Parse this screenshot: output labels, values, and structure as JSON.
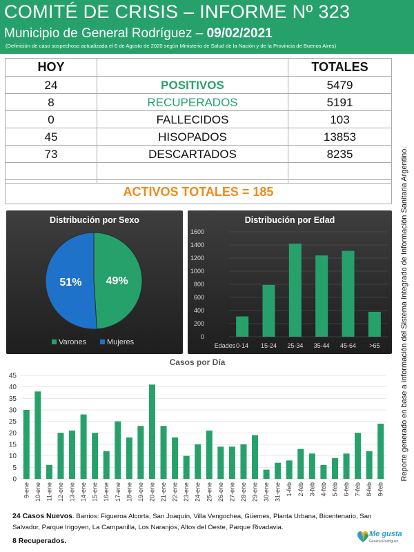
{
  "header": {
    "title": "COMITÉ DE CRISIS – INFORME Nº 323",
    "subtitle_prefix": "Municipio de General Rodríguez – ",
    "date": "09/02/2021",
    "definition": "(Definición de caso sospechoso actualizada el 6 de Agosto de 2020 según Ministerio de Salud de la Nación y de la Provincia de Buenos Aires)"
  },
  "stats": {
    "header_hoy": "HOY",
    "header_totales": "TOTALES",
    "rows": [
      {
        "hoy": "24",
        "label": "POSITIVOS",
        "total": "5479",
        "color": "#27a16b",
        "bold": true
      },
      {
        "hoy": "8",
        "label": "RECUPERADOS",
        "total": "5191",
        "color": "#27a16b",
        "bold": false
      },
      {
        "hoy": "0",
        "label": "FALLECIDOS",
        "total": "103",
        "color": "#111111",
        "bold": false
      },
      {
        "hoy": "45",
        "label": "HISOPADOS",
        "total": "13853",
        "color": "#111111",
        "bold": false
      },
      {
        "hoy": "73",
        "label": "DESCARTADOS",
        "total": "8235",
        "color": "#111111",
        "bold": false
      }
    ],
    "activos": "ACTIVOS TOTALES = 185"
  },
  "side_note": "Reporte generado en base a información del Sistema Integrado de Información Sanitaria Argentino.",
  "colors": {
    "green": "#27a16b",
    "blue": "#1f72c9",
    "orange": "#ef8a1a"
  },
  "chart_data": [
    {
      "type": "pie",
      "title": "Distribución por Sexo",
      "slices": [
        {
          "name": "Varones",
          "value": 49,
          "label": "49%",
          "color": "#27a16b"
        },
        {
          "name": "Mujeres",
          "value": 51,
          "label": "51%",
          "color": "#1f72c9"
        }
      ],
      "legend": "bottom"
    },
    {
      "type": "bar",
      "title": "Distribución por Edad",
      "axis_label": "Edades",
      "categories": [
        "0-14",
        "15-24",
        "25-34",
        "35-44",
        "45-64",
        ">65"
      ],
      "values": [
        310,
        790,
        1420,
        1240,
        1310,
        380
      ],
      "ylim": [
        0,
        1600
      ],
      "yticks": [
        0,
        200,
        400,
        600,
        800,
        1000,
        1200,
        1400,
        1600
      ],
      "grid": true
    },
    {
      "type": "bar",
      "title": "Casos por Día",
      "categories": [
        "9-ene",
        "10-ene",
        "11-ene",
        "12-ene",
        "13-ene",
        "14-ene",
        "15-ene",
        "16-ene",
        "17-ene",
        "18-ene",
        "19-ene",
        "20-ene",
        "21-ene",
        "22-ene",
        "23-ene",
        "24-ene",
        "25-ene",
        "26-ene",
        "27-ene",
        "28-ene",
        "29-ene",
        "30-ene",
        "31-ene",
        "1-feb",
        "2-feb",
        "3-feb",
        "4-feb",
        "5-feb",
        "6-feb",
        "7-feb",
        "8-feb",
        "9-feb"
      ],
      "values": [
        30,
        38,
        6,
        20,
        21,
        28,
        20,
        12,
        25,
        18,
        23,
        41,
        23,
        18,
        10,
        15,
        21,
        14,
        14,
        15,
        19,
        4,
        7,
        8,
        13,
        11,
        6,
        9,
        11,
        20,
        12,
        24
      ],
      "ylim": [
        0,
        45
      ],
      "yticks": [
        0,
        5,
        10,
        15,
        20,
        25,
        30,
        35,
        40,
        45
      ],
      "grid": true
    }
  ],
  "footer": {
    "new_cases_bold": "24 Casos Nuevos",
    "new_cases_rest": ". Barrios: Figueroa Alcorta, San Joaquín, Villa Vengochea, Güemes, Planta Urbana, Bicentenario, San Salvador, Parque Irigoyen, La Campanilla, Los Naranjos, Altos del Oeste, Parque Rivadavia.",
    "recuperados": "8 Recuperados."
  },
  "logo": {
    "text": "Me gusta",
    "sub": "General Rodríguez",
    "icon": "heart-logo-icon"
  }
}
